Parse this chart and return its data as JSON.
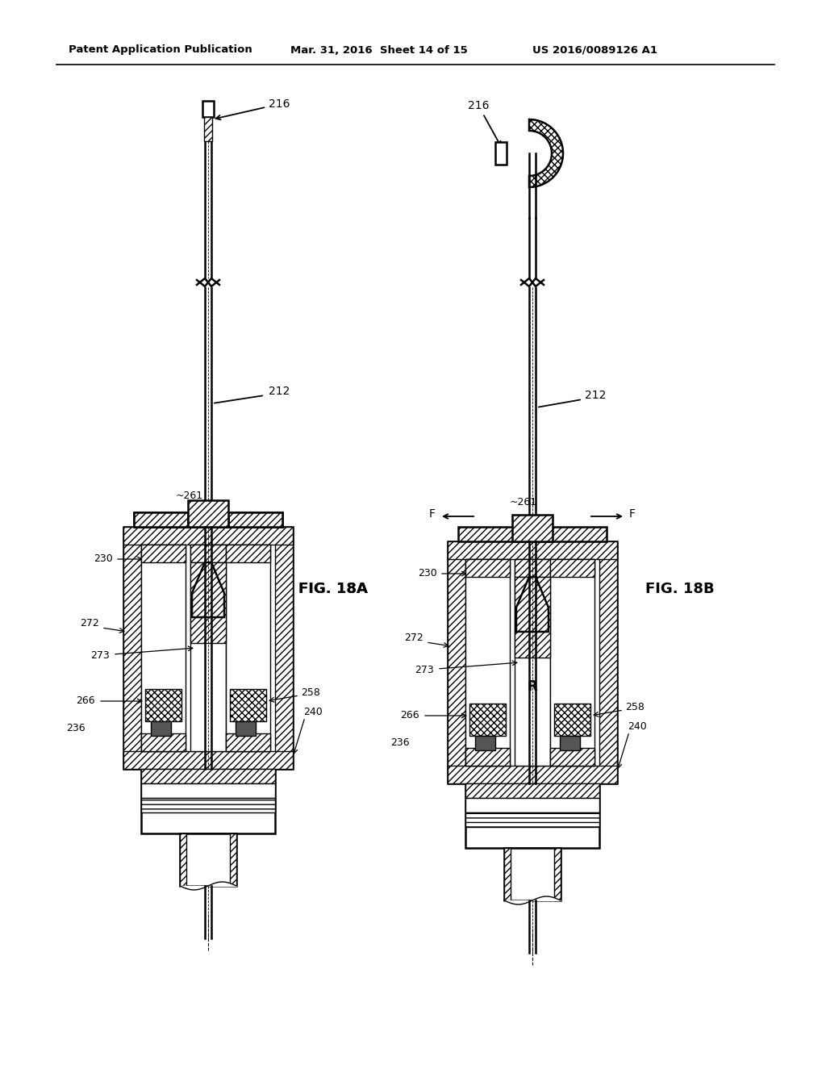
{
  "background_color": "#ffffff",
  "header_left": "Patent Application Publication",
  "header_mid": "Mar. 31, 2016  Sheet 14 of 15",
  "header_right": "US 2016/0089126 A1",
  "fig_label_A": "FIG. 18A",
  "fig_label_B": "FIG. 18B",
  "line_color": "#000000",
  "lw": 1.0,
  "lw_thick": 1.8,
  "lw_med": 1.3
}
